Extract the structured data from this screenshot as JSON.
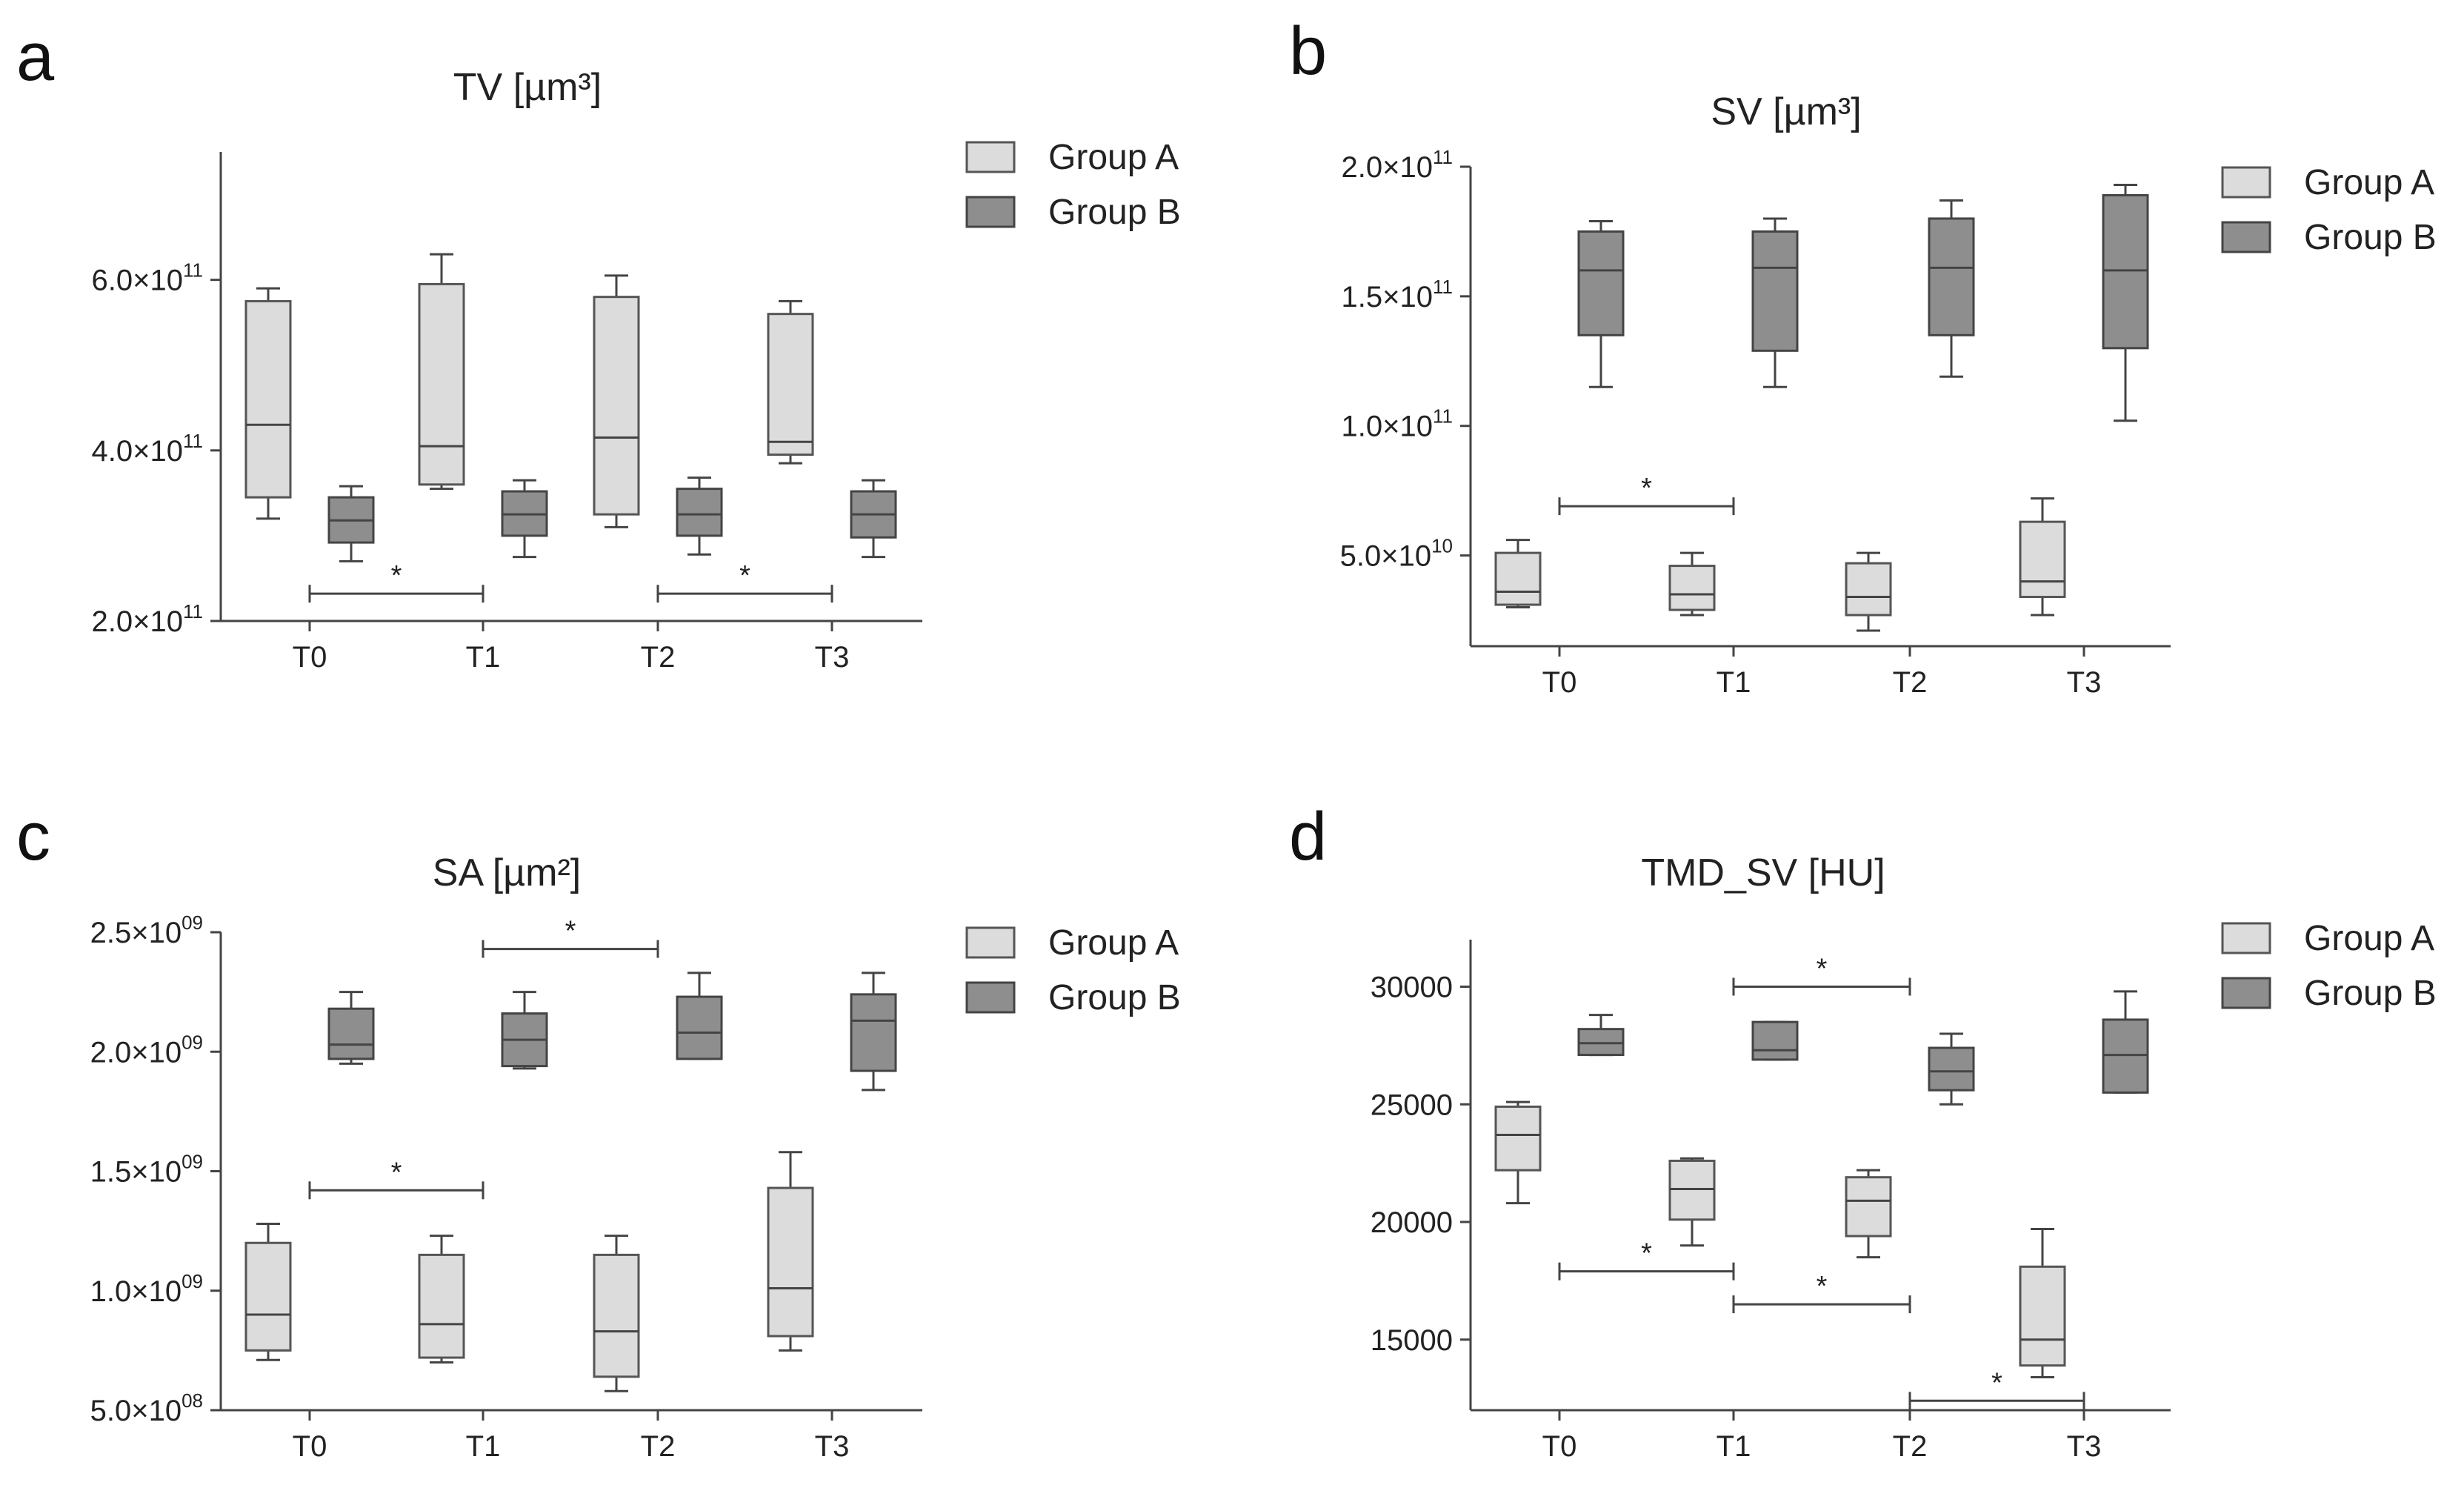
{
  "chart_data": [
    {
      "panel": "a",
      "type": "box",
      "title": "TV [µm³]",
      "categories": [
        "T0",
        "T1",
        "T2",
        "T3"
      ],
      "ylim": [
        200000000000.0,
        750000000000.0
      ],
      "yticks": [
        {
          "value": 200000000000.0,
          "mantissa": "2.0",
          "exp": "11"
        },
        {
          "value": 400000000000.0,
          "mantissa": "4.0",
          "exp": "11"
        },
        {
          "value": 600000000000.0,
          "mantissa": "6.0",
          "exp": "11"
        }
      ],
      "legend": [
        "Group A",
        "Group B"
      ],
      "series": [
        {
          "name": "Group A",
          "boxes": [
            {
              "min": 320000000000.0,
              "q1": 345000000000.0,
              "median": 430000000000.0,
              "q3": 575000000000.0,
              "max": 590000000000.0
            },
            {
              "min": 355000000000.0,
              "q1": 360000000000.0,
              "median": 405000000000.0,
              "q3": 595000000000.0,
              "max": 630000000000.0
            },
            {
              "min": 310000000000.0,
              "q1": 325000000000.0,
              "median": 415000000000.0,
              "q3": 580000000000.0,
              "max": 605000000000.0
            },
            {
              "min": 385000000000.0,
              "q1": 395000000000.0,
              "median": 410000000000.0,
              "q3": 560000000000.0,
              "max": 575000000000.0
            }
          ]
        },
        {
          "name": "Group B",
          "boxes": [
            {
              "min": 270000000000.0,
              "q1": 292000000000.0,
              "median": 318000000000.0,
              "q3": 345000000000.0,
              "max": 358000000000.0
            },
            {
              "min": 275000000000.0,
              "q1": 300000000000.0,
              "median": 325000000000.0,
              "q3": 352000000000.0,
              "max": 365000000000.0
            },
            {
              "min": 278000000000.0,
              "q1": 300000000000.0,
              "median": 325000000000.0,
              "q3": 355000000000.0,
              "max": 368000000000.0
            },
            {
              "min": 275000000000.0,
              "q1": 298000000000.0,
              "median": 325000000000.0,
              "q3": 352000000000.0,
              "max": 365000000000.0
            }
          ]
        }
      ],
      "significance": [
        {
          "from": 0,
          "to": 1,
          "value": 232000000000.0,
          "label": "*"
        },
        {
          "from": 2,
          "to": 3,
          "value": 232000000000.0,
          "label": "*"
        }
      ]
    },
    {
      "panel": "b",
      "type": "box",
      "title": "SV [µm³]",
      "categories": [
        "T0",
        "T1",
        "T2",
        "T3"
      ],
      "ylim": [
        15000000000.0,
        200000000000.0
      ],
      "yticks": [
        {
          "value": 50000000000.0,
          "mantissa": "5.0",
          "exp": "10"
        },
        {
          "value": 100000000000.0,
          "mantissa": "1.0",
          "exp": "11"
        },
        {
          "value": 150000000000.0,
          "mantissa": "1.5",
          "exp": "11"
        },
        {
          "value": 200000000000.0,
          "mantissa": "2.0",
          "exp": "11"
        }
      ],
      "legend": [
        "Group A",
        "Group B"
      ],
      "series": [
        {
          "name": "Group A",
          "boxes": [
            {
              "min": 30000000000.0,
              "q1": 31000000000.0,
              "median": 36000000000.0,
              "q3": 51000000000.0,
              "max": 56000000000.0
            },
            {
              "min": 27000000000.0,
              "q1": 29000000000.0,
              "median": 35000000000.0,
              "q3": 46000000000.0,
              "max": 51000000000.0
            },
            {
              "min": 21000000000.0,
              "q1": 27000000000.0,
              "median": 34000000000.0,
              "q3": 47000000000.0,
              "max": 51000000000.0
            },
            {
              "min": 27000000000.0,
              "q1": 34000000000.0,
              "median": 40000000000.0,
              "q3": 63000000000.0,
              "max": 72000000000.0
            }
          ]
        },
        {
          "name": "Group B",
          "boxes": [
            {
              "min": 115000000000.0,
              "q1": 135000000000.0,
              "median": 160000000000.0,
              "q3": 175000000000.0,
              "max": 179000000000.0
            },
            {
              "min": 115000000000.0,
              "q1": 129000000000.0,
              "median": 161000000000.0,
              "q3": 175000000000.0,
              "max": 180000000000.0
            },
            {
              "min": 119000000000.0,
              "q1": 135000000000.0,
              "median": 161000000000.0,
              "q3": 180000000000.0,
              "max": 187000000000.0
            },
            {
              "min": 102000000000.0,
              "q1": 130000000000.0,
              "median": 160000000000.0,
              "q3": 189000000000.0,
              "max": 193000000000.0
            }
          ]
        }
      ],
      "significance": [
        {
          "from": 0,
          "to": 1,
          "value": 69000000000.0,
          "label": "*"
        }
      ]
    },
    {
      "panel": "c",
      "type": "box",
      "title": "SA [µm²]",
      "categories": [
        "T0",
        "T1",
        "T2",
        "T3"
      ],
      "ylim": [
        500000000.0,
        2500000000.0
      ],
      "yticks": [
        {
          "value": 500000000.0,
          "mantissa": "5.0",
          "exp": "08"
        },
        {
          "value": 1000000000.0,
          "mantissa": "1.0",
          "exp": "09"
        },
        {
          "value": 1500000000.0,
          "mantissa": "1.5",
          "exp": "09"
        },
        {
          "value": 2000000000.0,
          "mantissa": "2.0",
          "exp": "09"
        },
        {
          "value": 2500000000.0,
          "mantissa": "2.5",
          "exp": "09"
        }
      ],
      "legend": [
        "Group A",
        "Group B"
      ],
      "series": [
        {
          "name": "Group A",
          "boxes": [
            {
              "min": 710000000.0,
              "q1": 750000000.0,
              "median": 900000000.0,
              "q3": 1200000000.0,
              "max": 1280000000.0
            },
            {
              "min": 700000000.0,
              "q1": 720000000.0,
              "median": 860000000.0,
              "q3": 1150000000.0,
              "max": 1230000000.0
            },
            {
              "min": 580000000.0,
              "q1": 640000000.0,
              "median": 830000000.0,
              "q3": 1150000000.0,
              "max": 1230000000.0
            },
            {
              "min": 750000000.0,
              "q1": 810000000.0,
              "median": 1010000000.0,
              "q3": 1430000000.0,
              "max": 1580000000.0
            }
          ]
        },
        {
          "name": "Group B",
          "boxes": [
            {
              "min": 1950000000.0,
              "q1": 1970000000.0,
              "median": 2030000000.0,
              "q3": 2180000000.0,
              "max": 2250000000.0
            },
            {
              "min": 1930000000.0,
              "q1": 1940000000.0,
              "median": 2050000000.0,
              "q3": 2160000000.0,
              "max": 2250000000.0
            },
            {
              "min": 1970000000.0,
              "q1": 1970000000.0,
              "median": 2080000000.0,
              "q3": 2230000000.0,
              "max": 2330000000.0
            },
            {
              "min": 1840000000.0,
              "q1": 1920000000.0,
              "median": 2130000000.0,
              "q3": 2240000000.0,
              "max": 2330000000.0
            }
          ]
        }
      ],
      "significance": [
        {
          "from": 0,
          "to": 1,
          "value": 1420000000.0,
          "label": "*"
        },
        {
          "from": 1,
          "to": 2,
          "value": 2430000000.0,
          "label": "*"
        }
      ]
    },
    {
      "panel": "d",
      "type": "box",
      "title": "TMD_SV [HU]",
      "categories": [
        "T0",
        "T1",
        "T2",
        "T3"
      ],
      "ylim": [
        12000,
        32000
      ],
      "yticks": [
        {
          "value": 15000,
          "mantissa": "15000",
          "exp": ""
        },
        {
          "value": 20000,
          "mantissa": "20000",
          "exp": ""
        },
        {
          "value": 25000,
          "mantissa": "25000",
          "exp": ""
        },
        {
          "value": 30000,
          "mantissa": "30000",
          "exp": ""
        }
      ],
      "legend": [
        "Group A",
        "Group B"
      ],
      "series": [
        {
          "name": "Group A",
          "boxes": [
            {
              "min": 20800,
              "q1": 22200,
              "median": 23700,
              "q3": 24900,
              "max": 25100
            },
            {
              "min": 19000,
              "q1": 20100,
              "median": 21400,
              "q3": 22600,
              "max": 22700
            },
            {
              "min": 18500,
              "q1": 19400,
              "median": 20900,
              "q3": 21900,
              "max": 22200
            },
            {
              "min": 13400,
              "q1": 13900,
              "median": 15000,
              "q3": 18100,
              "max": 19700
            }
          ]
        },
        {
          "name": "Group B",
          "boxes": [
            {
              "min": 27100,
              "q1": 27100,
              "median": 27600,
              "q3": 28200,
              "max": 28800
            },
            {
              "min": 26900,
              "q1": 26900,
              "median": 27300,
              "q3": 28500,
              "max": 28500
            },
            {
              "min": 25000,
              "q1": 25600,
              "median": 26400,
              "q3": 27400,
              "max": 28000
            },
            {
              "min": 25500,
              "q1": 25500,
              "median": 27100,
              "q3": 28600,
              "max": 29800
            }
          ]
        }
      ],
      "significance": [
        {
          "from": 1,
          "to": 2,
          "value": 30000,
          "label": "*"
        },
        {
          "from": 0,
          "to": 1,
          "value": 17900,
          "label": "*"
        },
        {
          "from": 1,
          "to": 2,
          "value": 16500,
          "label": "*"
        },
        {
          "from": 2,
          "to": 3,
          "value": 12400,
          "label": "*"
        }
      ]
    }
  ]
}
